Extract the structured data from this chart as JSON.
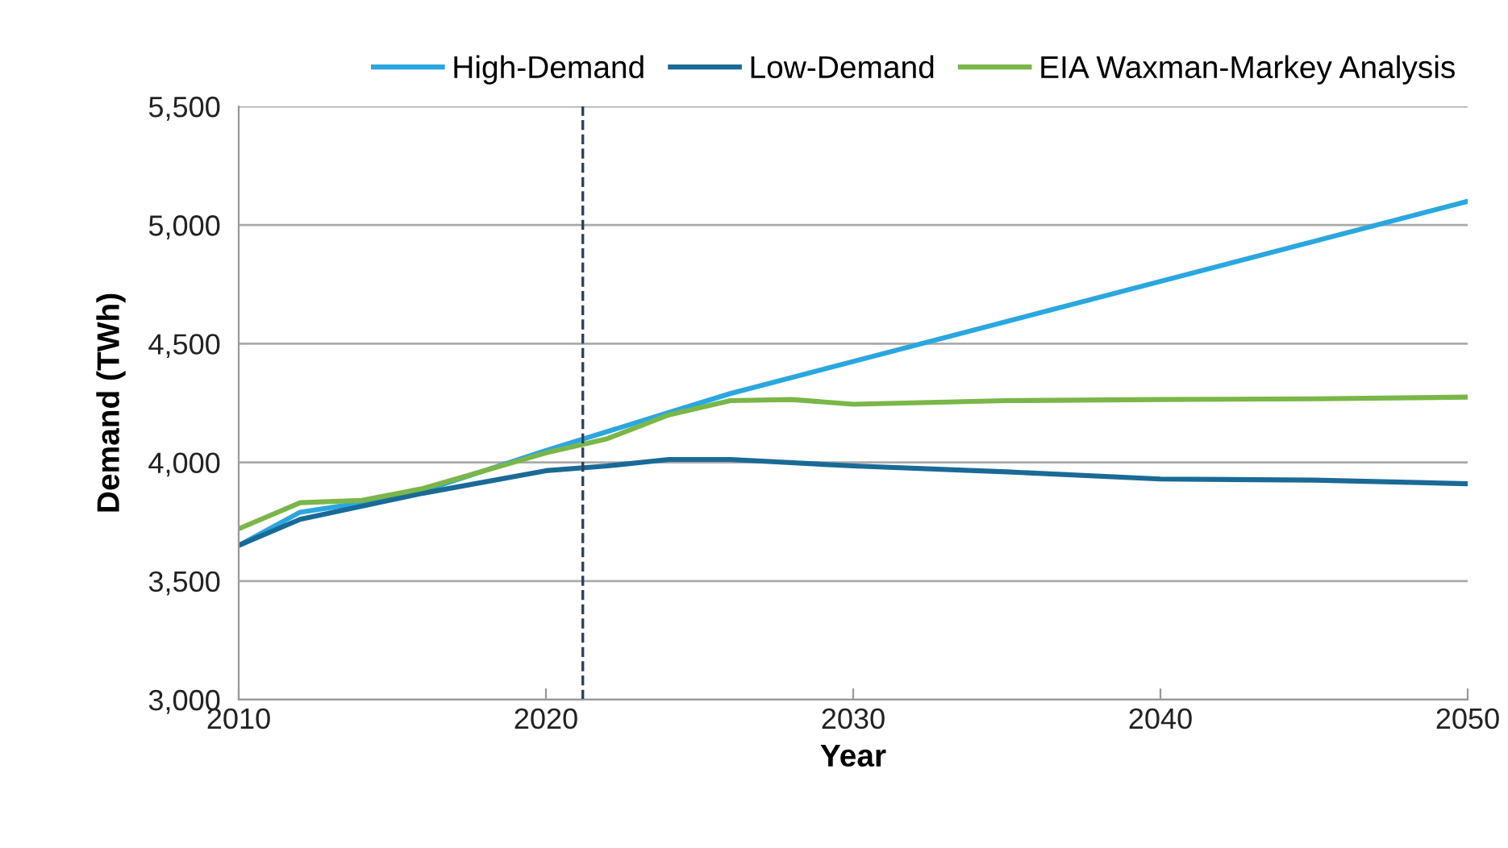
{
  "chart_data": {
    "type": "line",
    "xlabel": "Year",
    "ylabel": "Demand (TWh)",
    "xlim": [
      2010,
      2050
    ],
    "xticks": [
      2010,
      2020,
      2030,
      2040,
      2050
    ],
    "ylim": [
      3000,
      5500
    ],
    "yticks": [
      {
        "value": 3000,
        "label": "3,000"
      },
      {
        "value": 3500,
        "label": "3,500"
      },
      {
        "value": 4000,
        "label": "4,000"
      },
      {
        "value": 4500,
        "label": "4,500"
      },
      {
        "value": 5000,
        "label": "5,000"
      },
      {
        "value": 5500,
        "label": "5,500"
      }
    ],
    "grid": "y",
    "legend": "top",
    "marker": "none",
    "line_style": "solid",
    "ref_lines": [
      {
        "axis": "x",
        "value": 2021.2,
        "label": null,
        "color": "#2f3f5f",
        "line_style": "dashed"
      }
    ],
    "series": [
      {
        "name": "High-Demand",
        "color": "#2aa7df",
        "x": [
          2010,
          2012,
          2014,
          2016,
          2020,
          2024,
          2026,
          2050
        ],
        "values": [
          3650,
          3790,
          3830,
          3880,
          4050,
          4210,
          4290,
          5100
        ]
      },
      {
        "name": "Low-Demand",
        "color": "#1a6a96",
        "x": [
          2010,
          2012,
          2016,
          2020,
          2022,
          2024,
          2026,
          2030,
          2035,
          2040,
          2045,
          2050
        ],
        "values": [
          3650,
          3760,
          3870,
          3965,
          3985,
          4012,
          4012,
          3985,
          3960,
          3930,
          3925,
          3910
        ]
      },
      {
        "name": "EIA Waxman-Markey Analysis",
        "color": "#7ab648",
        "x": [
          2010,
          2012,
          2014,
          2016,
          2020,
          2022,
          2024,
          2026,
          2028,
          2030,
          2035,
          2040,
          2045,
          2050
        ],
        "values": [
          3720,
          3830,
          3840,
          3890,
          4040,
          4100,
          4200,
          4260,
          4265,
          4245,
          4260,
          4265,
          4268,
          4275
        ]
      }
    ]
  }
}
